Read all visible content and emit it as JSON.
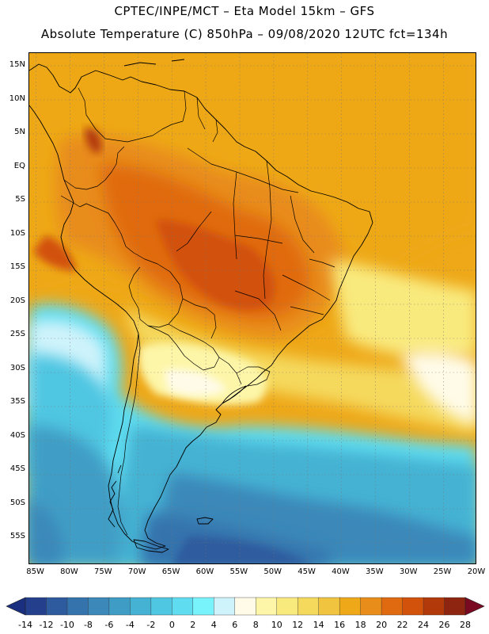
{
  "header": {
    "line1": "CPTEC/INPE/MCT –  Eta Model 15km – GFS",
    "line2": "Absolute Temperature (C) 850hPa – 09/08/2020 12UTC fct=134h"
  },
  "map": {
    "region": "South America",
    "variable": "Absolute Temperature (C) 850hPa",
    "lon_range": [
      -86,
      -20
    ],
    "lat_range": [
      -59,
      17
    ],
    "lat_ticks": [
      {
        "value": 15,
        "label": "15N"
      },
      {
        "value": 10,
        "label": "10N"
      },
      {
        "value": 5,
        "label": "5N"
      },
      {
        "value": 0,
        "label": "EQ"
      },
      {
        "value": -5,
        "label": "5S"
      },
      {
        "value": -10,
        "label": "10S"
      },
      {
        "value": -15,
        "label": "15S"
      },
      {
        "value": -20,
        "label": "20S"
      },
      {
        "value": -25,
        "label": "25S"
      },
      {
        "value": -30,
        "label": "30S"
      },
      {
        "value": -35,
        "label": "35S"
      },
      {
        "value": -40,
        "label": "40S"
      },
      {
        "value": -45,
        "label": "45S"
      },
      {
        "value": -50,
        "label": "50S"
      },
      {
        "value": -55,
        "label": "55S"
      }
    ],
    "lon_ticks": [
      {
        "value": -85,
        "label": "85W"
      },
      {
        "value": -80,
        "label": "80W"
      },
      {
        "value": -75,
        "label": "75W"
      },
      {
        "value": -70,
        "label": "70W"
      },
      {
        "value": -65,
        "label": "65W"
      },
      {
        "value": -60,
        "label": "60W"
      },
      {
        "value": -55,
        "label": "55W"
      },
      {
        "value": -50,
        "label": "50W"
      },
      {
        "value": -45,
        "label": "45W"
      },
      {
        "value": -40,
        "label": "40W"
      },
      {
        "value": -35,
        "label": "35W"
      },
      {
        "value": -30,
        "label": "30W"
      },
      {
        "value": -25,
        "label": "25W"
      },
      {
        "value": -20,
        "label": "20W"
      }
    ]
  },
  "colorbar": {
    "labels": [
      "-14",
      "-12",
      "-10",
      "-8",
      "-6",
      "-4",
      "-2",
      "0",
      "2",
      "4",
      "6",
      "8",
      "10",
      "12",
      "14",
      "16",
      "18",
      "20",
      "22",
      "24",
      "26",
      "28"
    ],
    "under_color": "#1a2f80",
    "over_color": "#7a0a22",
    "colors": [
      "#243f8c",
      "#2d5b9e",
      "#3573ad",
      "#3b88b9",
      "#3f9dc5",
      "#45b2d3",
      "#4fc6e2",
      "#5fdcef",
      "#78f3fb",
      "#cff3fb",
      "#fffbe8",
      "#fdf6a8",
      "#f9ea7e",
      "#f5d95d",
      "#f0c43e",
      "#eea818",
      "#e88c1a",
      "#e06a10",
      "#d2510b",
      "#b23a0a",
      "#8e2510"
    ]
  }
}
